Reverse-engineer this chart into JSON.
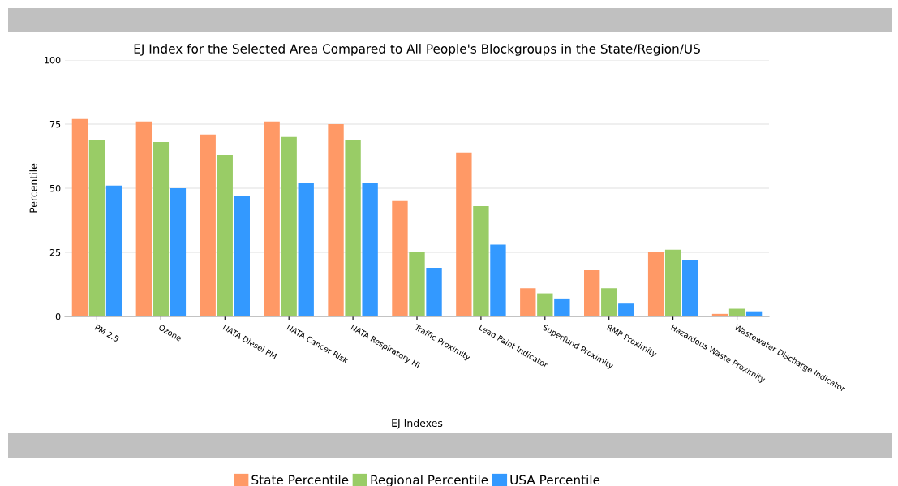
{
  "chart_data": {
    "type": "bar",
    "title": "EJ Index for the Selected Area Compared to All People's Blockgroups in the State/Region/US",
    "xlabel": "EJ Indexes",
    "ylabel": "Percentile",
    "categories": [
      "PM 2.5",
      "Ozone",
      "NATA Diesel PM",
      "NATA Cancer Risk",
      "NATA Respiratory HI",
      "Traffic Proximity",
      "Lead Paint Indicator",
      "Superfund Proximity",
      "RMP Proximity",
      "Hazardous Waste Proximity",
      "Wastewater Discharge Indicator"
    ],
    "series": [
      {
        "name": "State Percentile",
        "color": "#ff9966",
        "values": [
          77,
          76,
          71,
          76,
          75,
          45,
          64,
          11,
          18,
          25,
          1
        ]
      },
      {
        "name": "Regional Percentile",
        "color": "#99cc66",
        "values": [
          69,
          68,
          63,
          70,
          69,
          25,
          43,
          9,
          11,
          26,
          3
        ]
      },
      {
        "name": "USA Percentile",
        "color": "#3399ff",
        "values": [
          51,
          50,
          47,
          52,
          52,
          19,
          28,
          7,
          5,
          22,
          2
        ]
      }
    ],
    "ylim": [
      0,
      100
    ],
    "yticks": [
      0,
      25,
      50,
      75,
      100
    ],
    "grid": "y",
    "legend": "bottom"
  }
}
